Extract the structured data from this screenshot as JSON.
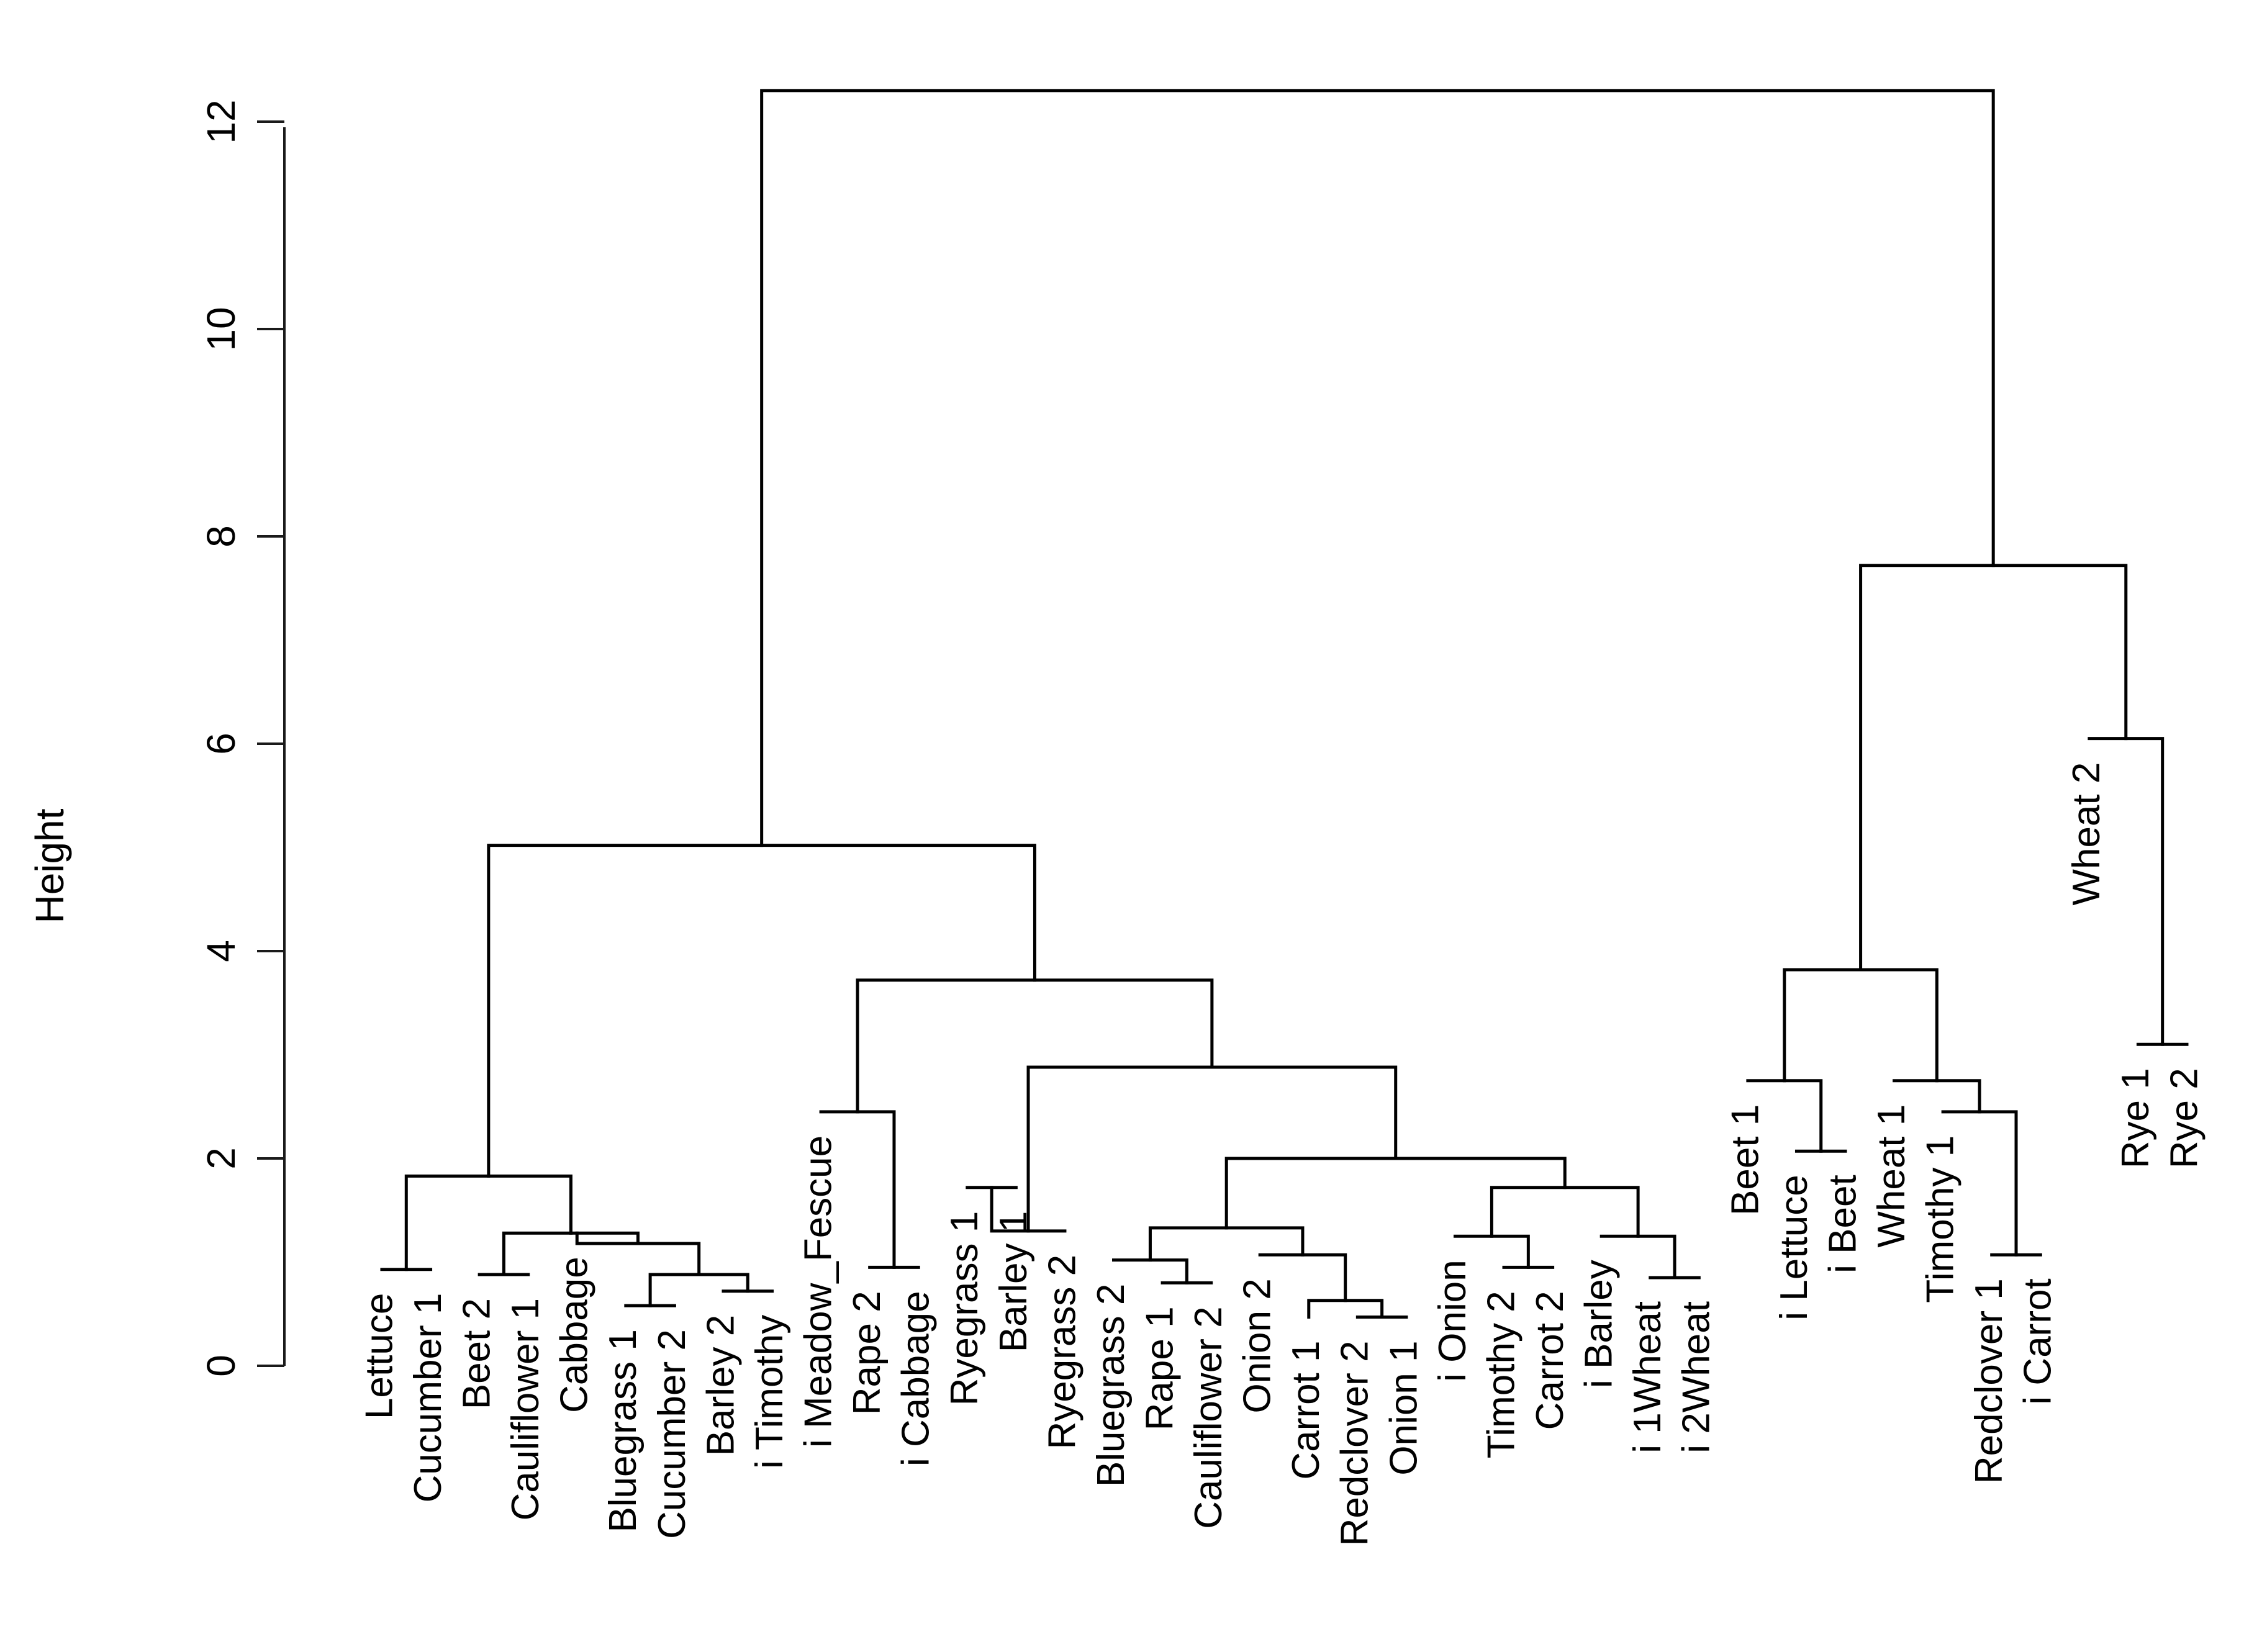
{
  "chart_data": {
    "type": "dendrogram",
    "title": "",
    "xlabel": "",
    "ylabel": "Height",
    "ylim": [
      0,
      13
    ],
    "y_ticks": [
      0,
      2,
      4,
      6,
      8,
      10,
      12
    ],
    "y_tick_labels": [
      "0",
      "2",
      "4",
      "6",
      "8",
      "10",
      "12"
    ],
    "line_color": "#000000",
    "leaves": [
      "Lettuce",
      "Cucumber 1",
      "Beet 2",
      "Cauliflower 1",
      "Cabbage",
      "Bluegrass 1",
      "Cucumber 2",
      "Barley 2",
      "i Timothy",
      "i Meadow_Fescue",
      "Rape 2",
      "i Cabbage",
      "Ryegrass 1",
      "Barley 1",
      "Ryegrass 2",
      "Bluegrass 2",
      "Rape 1",
      "Cauliflower 2",
      "Onion 2",
      "Carrot 1",
      "Redclover 2",
      "Onion 1",
      "i Onion",
      "Timothy 2",
      "Carrot 2",
      "i Barley",
      "i 1Wheat",
      "i 2Wheat",
      "Beet 1",
      "i Lettuce",
      "i Beet",
      "Wheat 1",
      "Timothy 1",
      "Redclover 1",
      "i Carrot",
      "Wheat 2",
      "Rye 1",
      "Rye 2"
    ],
    "leaf_heights": [
      0.93,
      0.93,
      0.88,
      0.88,
      1.28,
      0.58,
      0.58,
      0.72,
      0.72,
      2.45,
      0.95,
      0.95,
      1.72,
      1.72,
      1.3,
      1.02,
      0.8,
      0.8,
      1.07,
      0.47,
      0.47,
      0.47,
      1.25,
      0.95,
      0.95,
      1.25,
      0.85,
      0.85,
      2.75,
      2.07,
      2.07,
      2.75,
      2.45,
      1.07,
      1.07,
      6.05,
      3.1,
      3.1
    ],
    "merges": [
      {
        "left": "L0",
        "right": "L1",
        "height": 0.93
      },
      {
        "left": "L2",
        "right": "L3",
        "height": 0.88
      },
      {
        "left": "L5",
        "right": "L6",
        "height": 0.58
      },
      {
        "left": "L7",
        "right": "L8",
        "height": 0.72
      },
      {
        "left": "M2",
        "right": "M3",
        "height": 0.88
      },
      {
        "left": "L4",
        "right": "M4",
        "height": 1.18
      },
      {
        "left": "M1",
        "right": "M5",
        "height": 1.28
      },
      {
        "left": "M0",
        "right": "M6",
        "height": 1.83
      },
      {
        "left": "L10",
        "right": "L11",
        "height": 0.95
      },
      {
        "left": "L9",
        "right": "M8",
        "height": 2.45
      },
      {
        "left": "L12",
        "right": "L13",
        "height": 1.72
      },
      {
        "left": "L16",
        "right": "L17",
        "height": 0.8
      },
      {
        "left": "L15",
        "right": "M11",
        "height": 1.02
      },
      {
        "left": "L20",
        "right": "L21",
        "height": 0.47
      },
      {
        "left": "L19",
        "right": "M13",
        "height": 0.63
      },
      {
        "left": "L18",
        "right": "M14",
        "height": 1.07
      },
      {
        "left": "M12",
        "right": "M15",
        "height": 1.33
      },
      {
        "left": "L23",
        "right": "L24",
        "height": 0.95
      },
      {
        "left": "L22",
        "right": "M17",
        "height": 1.25
      },
      {
        "left": "L26",
        "right": "L27",
        "height": 0.85
      },
      {
        "left": "L25",
        "right": "M19",
        "height": 1.25
      },
      {
        "left": "M18",
        "right": "M20",
        "height": 1.72
      },
      {
        "left": "M16",
        "right": "M21",
        "height": 2.0
      },
      {
        "left": "M10",
        "right": "L14",
        "height": 1.3
      },
      {
        "left": "M23",
        "right": "M22",
        "height": 2.88
      },
      {
        "left": "M9",
        "right": "M24",
        "height": 3.72
      },
      {
        "left": "M7",
        "right": "M25",
        "height": 5.02
      },
      {
        "left": "L29",
        "right": "L30",
        "height": 2.07
      },
      {
        "left": "L28",
        "right": "M27",
        "height": 2.75
      },
      {
        "left": "L33",
        "right": "L34",
        "height": 1.07
      },
      {
        "left": "L32",
        "right": "M29",
        "height": 2.45
      },
      {
        "left": "L31",
        "right": "M30",
        "height": 2.75
      },
      {
        "left": "M28",
        "right": "M31",
        "height": 3.82
      },
      {
        "left": "L36",
        "right": "L37",
        "height": 3.1
      },
      {
        "left": "L35",
        "right": "M33",
        "height": 6.05
      },
      {
        "left": "M32",
        "right": "M34",
        "height": 7.72
      },
      {
        "left": "M26",
        "right": "M35",
        "height": 12.3
      }
    ]
  }
}
